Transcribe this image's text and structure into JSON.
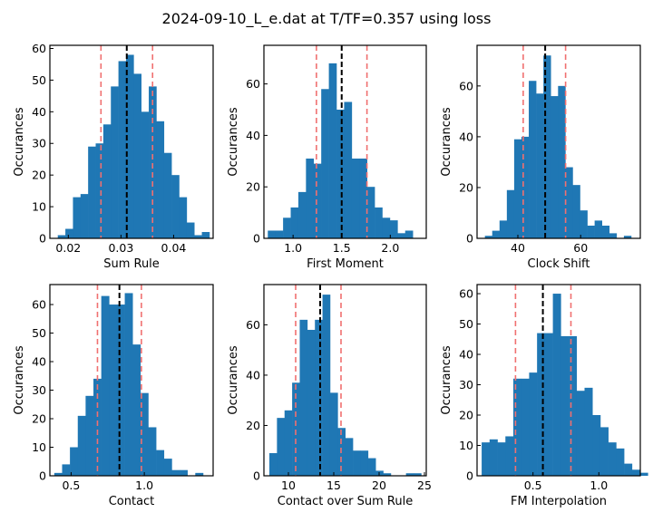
{
  "figure": {
    "title": "2024-09-10_L_e.dat at T/TF=0.357 using loss"
  },
  "colors": {
    "bar": "#1f77b4",
    "mean_line": "#000000",
    "sigma_line": "#f07070"
  },
  "chart_data": [
    {
      "type": "bar",
      "xlabel": "Sum Rule",
      "ylabel": "Occurances",
      "xlim": [
        0.0165,
        0.0475
      ],
      "ylim": [
        0,
        61
      ],
      "xticks": [
        0.02,
        0.03,
        0.04
      ],
      "xtick_labels": [
        "0.02",
        "0.03",
        "0.04"
      ],
      "yticks": [
        0,
        10,
        20,
        30,
        40,
        50,
        60
      ],
      "ytick_labels": [
        "0",
        "10",
        "20",
        "30",
        "40",
        "50",
        "60"
      ],
      "bin_start": 0.018,
      "bin_width": 0.00144,
      "values": [
        1,
        3,
        13,
        14,
        29,
        30,
        36,
        48,
        56,
        58,
        52,
        40,
        48,
        37,
        27,
        20,
        13,
        5,
        1,
        2
      ],
      "mean": 0.0311,
      "lower": 0.0262,
      "upper": 0.036
    },
    {
      "type": "bar",
      "xlabel": "First Moment",
      "ylabel": "Occurances",
      "xlim": [
        0.7,
        2.37
      ],
      "ylim": [
        0,
        75
      ],
      "xticks": [
        1.0,
        1.5,
        2.0
      ],
      "xtick_labels": [
        "1.0",
        "1.5",
        "2.0"
      ],
      "yticks": [
        0,
        20,
        40,
        60
      ],
      "ytick_labels": [
        "0",
        "20",
        "40",
        "60"
      ],
      "bin_start": 0.74,
      "bin_width": 0.0785,
      "values": [
        3,
        3,
        8,
        12,
        18,
        31,
        29,
        58,
        68,
        50,
        53,
        31,
        31,
        20,
        12,
        8,
        7,
        2,
        3
      ],
      "mean": 1.5,
      "lower": 1.24,
      "upper": 1.76
    },
    {
      "type": "bar",
      "xlabel": "Clock Shift",
      "ylabel": "Occurances",
      "xlim": [
        27,
        79
      ],
      "ylim": [
        0,
        76
      ],
      "xticks": [
        40,
        60
      ],
      "xtick_labels": [
        "40",
        "60"
      ],
      "yticks": [
        0,
        20,
        40,
        60
      ],
      "ytick_labels": [
        "0",
        "20",
        "40",
        "60"
      ],
      "bin_start": 29.5,
      "bin_width": 2.33,
      "values": [
        1,
        3,
        7,
        19,
        39,
        40,
        62,
        57,
        72,
        56,
        60,
        28,
        21,
        11,
        5,
        7,
        5,
        2,
        0,
        1
      ],
      "mean": 48.7,
      "lower": 41.7,
      "upper": 55.2
    },
    {
      "type": "bar",
      "xlabel": "Contact",
      "ylabel": "Occurances",
      "xlim": [
        0.355,
        1.47
      ],
      "ylim": [
        0,
        67
      ],
      "xticks": [
        0.5,
        1.0
      ],
      "xtick_labels": [
        "0.5",
        "1.0"
      ],
      "yticks": [
        0,
        10,
        20,
        30,
        40,
        50,
        60
      ],
      "ytick_labels": [
        "0",
        "10",
        "20",
        "30",
        "40",
        "50",
        "60"
      ],
      "bin_start": 0.385,
      "bin_width": 0.0535,
      "values": [
        1,
        4,
        10,
        21,
        28,
        34,
        63,
        60,
        60,
        64,
        46,
        29,
        17,
        9,
        6,
        2,
        2,
        0,
        1
      ],
      "mean": 0.83,
      "lower": 0.68,
      "upper": 0.98
    },
    {
      "type": "bar",
      "xlabel": "Contact over Sum Rule",
      "ylabel": "Occurances",
      "xlim": [
        7.3,
        25.2
      ],
      "ylim": [
        0,
        76
      ],
      "xticks": [
        10,
        15,
        20,
        25
      ],
      "xtick_labels": [
        "10",
        "15",
        "20",
        "25"
      ],
      "yticks": [
        0,
        20,
        40,
        60
      ],
      "ytick_labels": [
        "0",
        "20",
        "40",
        "60"
      ],
      "bin_start": 7.9,
      "bin_width": 0.837,
      "values": [
        9,
        23,
        26,
        37,
        62,
        58,
        62,
        72,
        33,
        19,
        15,
        10,
        10,
        7,
        2,
        1,
        0,
        0,
        1,
        1
      ],
      "mean": 13.5,
      "lower": 10.8,
      "upper": 15.8
    },
    {
      "type": "bar",
      "xlabel": "FM Interpolation",
      "ylabel": "Occurances",
      "xlim": [
        0.075,
        1.315
      ],
      "ylim": [
        0,
        63
      ],
      "xticks": [
        0.5,
        1.0
      ],
      "xtick_labels": [
        "0.5",
        "1.0"
      ],
      "yticks": [
        0,
        10,
        20,
        30,
        40,
        50,
        60
      ],
      "ytick_labels": [
        "0",
        "10",
        "20",
        "30",
        "40",
        "50",
        "60"
      ],
      "bin_start": 0.11,
      "bin_width": 0.0601,
      "values": [
        11,
        12,
        11,
        13,
        32,
        32,
        34,
        47,
        47,
        60,
        46,
        46,
        28,
        29,
        20,
        16,
        11,
        9,
        4,
        2,
        1
      ],
      "mean": 0.575,
      "lower": 0.367,
      "upper": 0.788
    }
  ]
}
